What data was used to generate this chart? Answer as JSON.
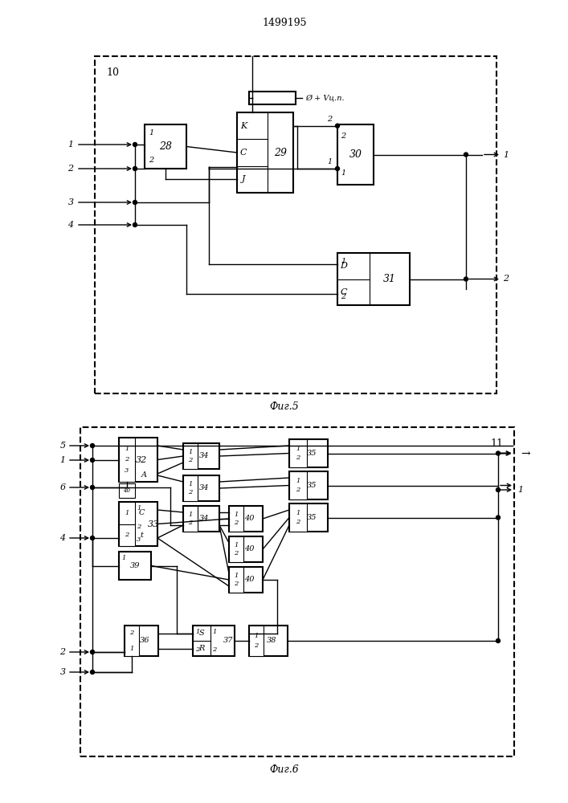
{
  "title": "1499195",
  "fig5_label": "Фиг.5",
  "fig6_label": "Фиг.6",
  "supply_label": "Ø + Vц.п.",
  "bg_color": "#ffffff"
}
